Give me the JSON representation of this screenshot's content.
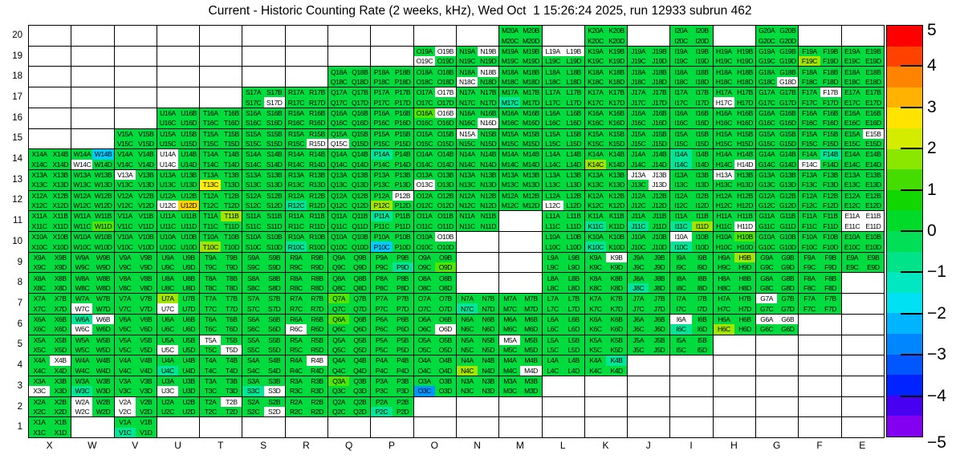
{
  "chart_data": {
    "type": "heatmap",
    "title": "Current - Historic Counting Rate (2 weeks, kHz), Wed Oct  1 15:26:24 2025, run 12933 subrun 462",
    "x_categories": [
      "X",
      "W",
      "V",
      "U",
      "T",
      "S",
      "R",
      "Q",
      "P",
      "O",
      "N",
      "M",
      "L",
      "K",
      "J",
      "I",
      "H",
      "G",
      "F",
      "E"
    ],
    "y_categories": [
      20,
      19,
      18,
      17,
      16,
      15,
      14,
      13,
      12,
      11,
      10,
      9,
      8,
      7,
      6,
      5,
      4,
      3,
      2,
      1
    ],
    "subcell_suffixes": [
      "A",
      "B",
      "C",
      "D"
    ],
    "label_pattern": "{column}{row}{suffix}",
    "grid_on": true,
    "color_codes": {
      "g": {
        "hex": "#00dc3d",
        "meaning": "near zero (base green)"
      },
      "s": {
        "hex": "#4fe600",
        "meaning": "slightly positive (~+0.5 to +1)"
      },
      "h": {
        "hex": "#a2e600",
        "meaning": "positive chartreuse (~+1.5 to +2)"
      },
      "y": {
        "hex": "#ffef00",
        "meaning": "positive yellow (~+2.5 to +3)"
      },
      "o": {
        "hex": "#ffd300",
        "meaning": "positive gold (~+3)"
      },
      "t": {
        "hex": "#00e697",
        "meaning": "slightly negative teal (~-0.5 to -1)"
      },
      "c": {
        "hex": "#00ccff",
        "meaning": "negative cyan (~-2)"
      },
      "b": {
        "hex": "#0096ff",
        "meaning": "negative blue (~-2.5 to -3)"
      },
      "w": {
        "hex": "#ffffff",
        "meaning": "no data / masked sub-cell"
      }
    },
    "cells": {
      "20": {
        "M": "gggg",
        "K": "gggg",
        "I": "gggg",
        "G": "gggg"
      },
      "19": {
        "O": "gwwg",
        "N": "gwgg",
        "M": "gggg",
        "L": "wwgg",
        "K": "gggg",
        "J": "gggg",
        "I": "gggg",
        "H": "gggg",
        "G": "gggg",
        "F": "gghg",
        "E": "gggg"
      },
      "18": {
        "Q": "gggg",
        "P": "gggg",
        "O": "gggg",
        "N": "gwwg",
        "M": "gggg",
        "L": "gggg",
        "K": "gggg",
        "J": "gggg",
        "I": "gggg",
        "H": "gggg",
        "G": "gggw",
        "F": "gggg",
        "E": "gggg"
      },
      "17": {
        "S": "gggw",
        "R": "gggg",
        "Q": "gggg",
        "P": "gggg",
        "O": "gwgg",
        "N": "gggg",
        "M": "ggtg",
        "L": "gggg",
        "K": "gggg",
        "J": "gggg",
        "I": "gggg",
        "H": "ggwg",
        "G": "gggg",
        "F": "gwgg",
        "E": "gggg"
      },
      "16": {
        "U": "gggg",
        "T": "gggg",
        "S": "gggg",
        "R": "gggg",
        "Q": "gggg",
        "P": "gggg",
        "O": "swgg",
        "N": "gggw",
        "M": "gggg",
        "L": "gggg",
        "K": "gggg",
        "J": "gggg",
        "I": "gggg",
        "H": "gggg",
        "G": "gggg",
        "F": "gggg",
        "E": "gggg"
      },
      "15": {
        "V": "gggg",
        "U": "gggg",
        "T": "gggg",
        "S": "gggg",
        "R": "gggw",
        "Q": "ggwg",
        "P": "gggg",
        "O": "gggg",
        "N": "wggg",
        "M": "gggg",
        "L": "gggg",
        "K": "gggg",
        "J": "gggg",
        "I": "gggg",
        "H": "gggg",
        "G": "gggg",
        "F": "gggg",
        "E": "gwgg"
      },
      "14": {
        "X": "gggg",
        "W": "gcwg",
        "V": "gggg",
        "U": "wgwg",
        "T": "gggg",
        "S": "gggg",
        "R": "gggg",
        "Q": "gggg",
        "P": "tggg",
        "O": "gggg",
        "N": "gggg",
        "M": "gggg",
        "L": "gggg",
        "K": "gghg",
        "J": "gggg",
        "I": "tgtg",
        "H": "gggw",
        "G": "gggg",
        "F": "gtwg",
        "E": "gggg"
      },
      "13": {
        "X": "gggg",
        "W": "gggg",
        "V": "wggg",
        "U": "gggg",
        "T": "ggyg",
        "S": "gggg",
        "R": "gggg",
        "Q": "gggg",
        "P": "gggg",
        "O": "ggwg",
        "N": "gggg",
        "M": "gggg",
        "L": "gggg",
        "K": "gggg",
        "J": "wwgw",
        "I": "gggg",
        "H": "wggg",
        "G": "gggg",
        "F": "gggg",
        "E": "gggg"
      },
      "12": {
        "X": "gggg",
        "W": "gggg",
        "V": "gggg",
        "U": "ggwo",
        "T": "gggg",
        "S": "gggg",
        "R": "ggtg",
        "Q": "gggg",
        "P": "gwhg",
        "O": "gggg",
        "N": "gggg",
        "M": "gggg",
        "L": "ggwg",
        "K": "gggg",
        "J": "gggg",
        "I": "gggg",
        "H": "gggg",
        "G": "gggg",
        "F": "gggg",
        "E": "gggg"
      },
      "11": {
        "X": "gggg",
        "W": "gggs",
        "V": "gggg",
        "U": "gggg",
        "T": "ghgg",
        "S": "gggg",
        "R": "gggg",
        "Q": "gggg",
        "P": "tggg",
        "O": "gggg",
        "N": "gggg",
        "L": "gggg",
        "K": "ggtg",
        "J": "ggtg",
        "I": "ggth",
        "H": "gggw",
        "G": "gggg",
        "F": "gggg",
        "E": "wwww"
      },
      "10": {
        "X": "gggg",
        "W": "gggg",
        "V": "gggg",
        "U": "gggg",
        "T": "gghg",
        "S": "gggg",
        "R": "ggtg",
        "Q": "gggg",
        "P": "ggcg",
        "O": "gwgg",
        "L": "gggg",
        "K": "ggtg",
        "J": "gggg",
        "I": "wgtg",
        "H": "gsgg",
        "G": "gggg",
        "F": "gggg",
        "E": "gggg"
      },
      "9": {
        "X": "gggg",
        "W": "gggg",
        "V": "gggg",
        "U": "gggg",
        "T": "gggg",
        "S": "gggg",
        "R": "gggg",
        "Q": "gggg",
        "P": "gggt",
        "O": "gggs",
        "L": "gggg",
        "K": "gwgg",
        "J": "gggg",
        "I": "gggg",
        "H": "ghgg",
        "G": "gggg",
        "F": "gggg",
        "E": "gggg"
      },
      "8": {
        "X": "gggg",
        "W": "gggg",
        "V": "gggg",
        "U": "gggg",
        "T": "gggg",
        "S": "gggg",
        "R": "gggg",
        "Q": "gggg",
        "P": "gggg",
        "O": "gggg",
        "L": "gggg",
        "K": "gggg",
        "J": "ggtg",
        "I": "gggg",
        "H": "gggg",
        "G": "gggg",
        "F": "gggg"
      },
      "7": {
        "X": "gggg",
        "W": "ggwg",
        "V": "gggg",
        "U": "hgwg",
        "T": "gggg",
        "S": "gggg",
        "R": "gggg",
        "Q": "sggg",
        "P": "gggg",
        "O": "gggg",
        "N": "ggtg",
        "M": "gggg",
        "L": "gggg",
        "K": "gggg",
        "J": "gggg",
        "I": "gggg",
        "H": "gggg",
        "G": "wggg",
        "F": "gggg"
      },
      "6": {
        "X": "gggg",
        "W": "twwg",
        "V": "gggg",
        "U": "gggg",
        "T": "gggg",
        "S": "gggg",
        "R": "ggwg",
        "Q": "sggg",
        "P": "gggg",
        "O": "gggw",
        "N": "gggg",
        "M": "gggg",
        "L": "gggg",
        "K": "gggg",
        "J": "gggg",
        "I": "wgtg",
        "H": "gghg",
        "G": "wwgg"
      },
      "5": {
        "X": "gggg",
        "W": "gggg",
        "V": "gggg",
        "U": "ggwg",
        "T": "wggw",
        "S": "gggg",
        "R": "gggg",
        "Q": "gggg",
        "P": "gggg",
        "O": "gggg",
        "N": "gggg",
        "M": "wggg",
        "L": "gggg",
        "K": "gggg",
        "J": "gggg",
        "I": "gggg"
      },
      "4": {
        "X": "gwgg",
        "W": "gggg",
        "V": "gggg",
        "U": "ggtg",
        "T": "gggg",
        "S": "gggg",
        "R": "gwgg",
        "Q": "gggg",
        "P": "gggg",
        "O": "gggg",
        "N": "gghg",
        "M": "gggw",
        "L": "gggg",
        "K": "gtgg"
      },
      "3": {
        "X": "ggwg",
        "W": "ggtg",
        "V": "gggg",
        "U": "ggwg",
        "T": "gggg",
        "S": "ggtw",
        "R": "gggg",
        "Q": "sggg",
        "P": "gggg",
        "O": "ggbg",
        "N": "gggg",
        "M": "gggg"
      },
      "2": {
        "X": "gggg",
        "W": "wgwg",
        "V": "wgwg",
        "U": "gggg",
        "T": "gwgg",
        "S": "gggw",
        "R": "gggg",
        "Q": "gggg",
        "P": "ggtg"
      },
      "1": {
        "X": "gggg",
        "V": "ggtg"
      }
    },
    "colorbar": {
      "min": -5,
      "max": 5,
      "tick_values": [
        5,
        4,
        3,
        2,
        1,
        0,
        -1,
        -2,
        -3,
        -4,
        -5
      ],
      "tick_labels": [
        "5",
        "4",
        "3",
        "2",
        "1",
        "0",
        "−1",
        "−2",
        "−3",
        "−4",
        "−5"
      ],
      "band_colors_top_to_bottom": [
        "#ff0000",
        "#ff4200",
        "#ff8500",
        "#ffb200",
        "#ffe400",
        "#d4ec00",
        "#8ce700",
        "#45dd00",
        "#12d600",
        "#00da28",
        "#00df55",
        "#00e388",
        "#00e7c1",
        "#00e1f4",
        "#00b5ff",
        "#0086ff",
        "#0057ff",
        "#0023ff",
        "#4700f0",
        "#8300f0"
      ]
    }
  }
}
